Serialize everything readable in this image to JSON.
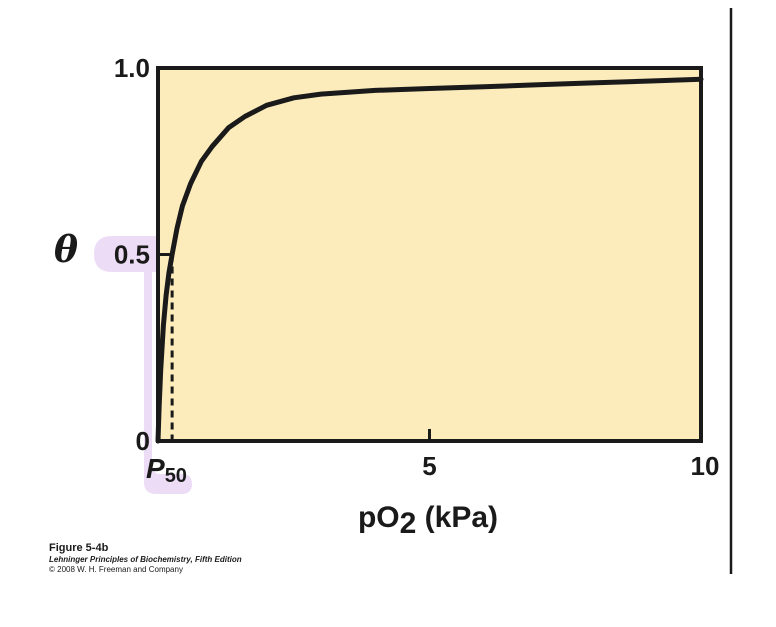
{
  "colors": {
    "plot_background": "#fcecbb",
    "curve": "#1a1a1a",
    "frame": "#1a1a1a",
    "highlight": "#eddcf5"
  },
  "chart_data": {
    "type": "line",
    "title": "",
    "xlabel": "pO₂ (kPa)",
    "ylabel": "θ",
    "xlim": [
      0,
      10
    ],
    "ylim": [
      0,
      1.0
    ],
    "grid": false,
    "x_ticks": [
      {
        "value": 0,
        "label": "P50"
      },
      {
        "value": 5,
        "label": "5"
      },
      {
        "value": 10,
        "label": "10"
      }
    ],
    "y_ticks": [
      {
        "value": 0,
        "label": "0"
      },
      {
        "value": 0.5,
        "label": "0.5"
      },
      {
        "value": 1.0,
        "label": "1.0"
      }
    ],
    "p50": 0.26,
    "series": [
      {
        "style": "solid",
        "x": [
          0,
          0.02,
          0.05,
          0.1,
          0.15,
          0.2,
          0.26,
          0.35,
          0.45,
          0.6,
          0.8,
          1.0,
          1.3,
          1.6,
          2.0,
          2.5,
          3.0,
          3.5,
          4.0,
          5.0,
          6.0,
          7.0,
          8.0,
          9.0,
          10.0
        ],
        "y": [
          0,
          0.09,
          0.19,
          0.31,
          0.39,
          0.45,
          0.5,
          0.57,
          0.63,
          0.69,
          0.75,
          0.79,
          0.84,
          0.87,
          0.9,
          0.92,
          0.93,
          0.935,
          0.94,
          0.945,
          0.95,
          0.955,
          0.96,
          0.965,
          0.97
        ]
      }
    ],
    "annotations": [
      {
        "type": "dashed-vertical",
        "x": 0.26,
        "y_from": 0,
        "y_to": 0.5
      }
    ]
  },
  "caption": {
    "figure": "Figure 5-4b",
    "book": "Lehninger Principles of Biochemistry, Fifth Edition",
    "copyright": "© 2008 W. H. Freeman and Company"
  }
}
